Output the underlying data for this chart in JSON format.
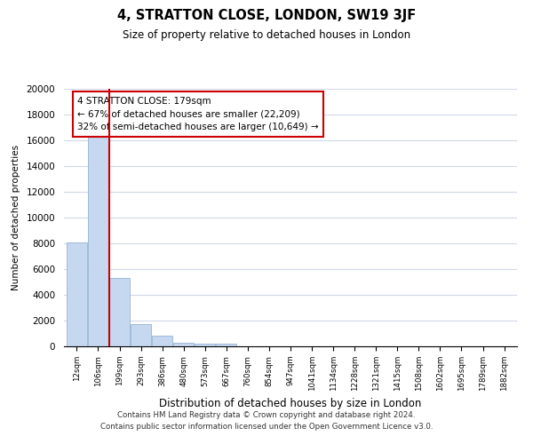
{
  "title": "4, STRATTON CLOSE, LONDON, SW19 3JF",
  "subtitle": "Size of property relative to detached houses in London",
  "xlabel": "Distribution of detached houses by size in London",
  "ylabel": "Number of detached properties",
  "bar_values": [
    8100,
    16600,
    5300,
    1750,
    800,
    300,
    200,
    200,
    0,
    0,
    0,
    0,
    0,
    0,
    0,
    0,
    0,
    0,
    0,
    0,
    0
  ],
  "bar_labels": [
    "12sqm",
    "106sqm",
    "199sqm",
    "293sqm",
    "386sqm",
    "480sqm",
    "573sqm",
    "667sqm",
    "760sqm",
    "854sqm",
    "947sqm",
    "1041sqm",
    "1134sqm",
    "1228sqm",
    "1321sqm",
    "1415sqm",
    "1508sqm",
    "1602sqm",
    "1695sqm",
    "1789sqm",
    "1882sqm"
  ],
  "bar_color": "#c5d8f0",
  "bar_edge_color": "#a0bcd8",
  "vline_color": "#cc0000",
  "annotation_title": "4 STRATTON CLOSE: 179sqm",
  "annotation_line1": "← 67% of detached houses are smaller (22,209)",
  "annotation_line2": "32% of semi-detached houses are larger (10,649) →",
  "annotation_box_color": "#ffffff",
  "annotation_box_edge": "#cc0000",
  "ylim": [
    0,
    20000
  ],
  "yticks": [
    0,
    2000,
    4000,
    6000,
    8000,
    10000,
    12000,
    14000,
    16000,
    18000,
    20000
  ],
  "footer_line1": "Contains HM Land Registry data © Crown copyright and database right 2024.",
  "footer_line2": "Contains public sector information licensed under the Open Government Licence v3.0.",
  "background_color": "#ffffff",
  "grid_color": "#d0d8e8"
}
